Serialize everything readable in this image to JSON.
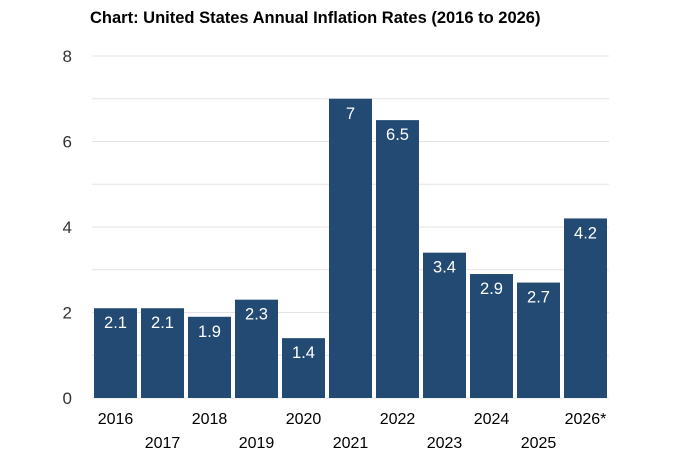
{
  "chart_data": {
    "type": "bar",
    "title": "Chart: United States Annual Inflation Rates (2016 to 2026)",
    "categories": [
      "2016",
      "2017",
      "2018",
      "2019",
      "2020",
      "2021",
      "2022",
      "2023",
      "2024",
      "2025",
      "2026*"
    ],
    "values": [
      2.1,
      2.1,
      1.9,
      2.3,
      1.4,
      7,
      6.5,
      3.4,
      2.9,
      2.7,
      4.2
    ],
    "data_labels": [
      "2.1",
      "2.1",
      "1.9",
      "2.3",
      "1.4",
      "7",
      "6.5",
      "3.4",
      "2.9",
      "2.7",
      "4.2"
    ],
    "yticks": [
      "0",
      "2",
      "4",
      "6",
      "8"
    ],
    "ylim": [
      0,
      8
    ],
    "xlabel": "",
    "ylabel": "",
    "grid": true,
    "colors": {
      "bar": "#234a72",
      "grid": "#e3e3e3",
      "label": "#ffffff"
    }
  }
}
